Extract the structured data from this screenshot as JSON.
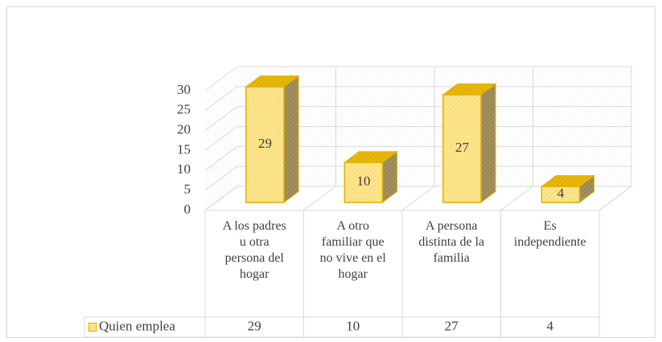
{
  "chart_data": {
    "type": "bar3d",
    "categories": [
      "A los padres u otra persona del hogar",
      "A otro familiar que no vive en el hogar",
      "A persona distinta de la familia",
      "Es independiente"
    ],
    "series": [
      {
        "name": "Quien emplea",
        "color": "#ffe68f",
        "values": [
          29,
          10,
          27,
          4
        ]
      }
    ],
    "ylim": [
      0,
      30
    ],
    "yticks": [
      0,
      5,
      10,
      15,
      20,
      25,
      30
    ],
    "grid": true,
    "data_table": true
  }
}
